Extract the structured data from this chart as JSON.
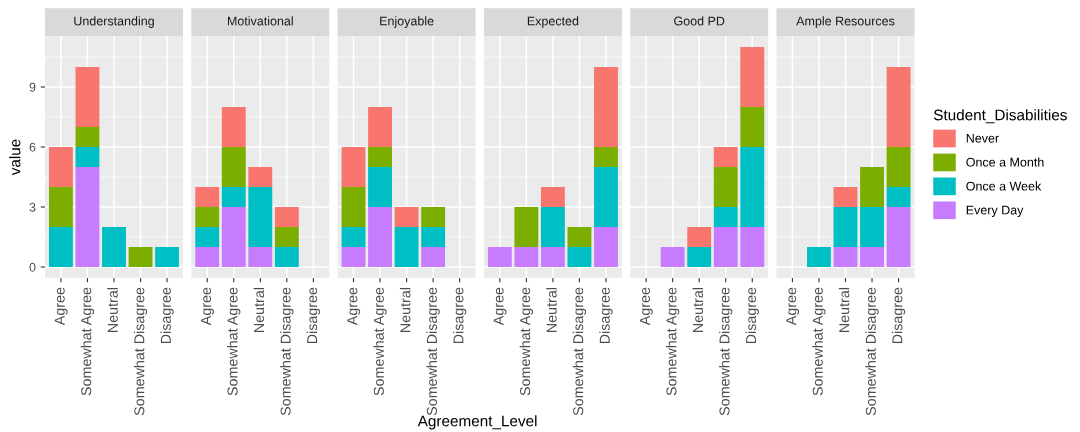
{
  "chart_data": [
    {
      "type": "bar",
      "stacked": true,
      "title": "Understanding",
      "ylabel": "value",
      "categories": [
        "Agree",
        "Somewhat Agree",
        "Neutral",
        "Somewhat Disagree",
        "Disagree"
      ],
      "ylim": [
        -0.55,
        11.55
      ],
      "yticks": [
        0,
        3,
        6,
        9
      ],
      "grid": true,
      "legend": "right",
      "legend_title": "Student_Disabilities",
      "series": [
        {
          "name": "Every Day",
          "color": "#c77cff",
          "values": [
            0,
            5,
            0,
            0,
            0
          ]
        },
        {
          "name": "Once a Week",
          "color": "#00bfc4",
          "values": [
            2,
            1,
            2,
            0,
            1
          ]
        },
        {
          "name": "Once a Month",
          "color": "#7cae00",
          "values": [
            2,
            1,
            0,
            1,
            0
          ]
        },
        {
          "name": "Never",
          "color": "#f8766d",
          "values": [
            2,
            3,
            0,
            0,
            0
          ]
        }
      ]
    },
    {
      "type": "bar",
      "stacked": true,
      "title": "Motivational",
      "categories": [
        "Agree",
        "Somewhat Agree",
        "Neutral",
        "Somewhat Disagree",
        "Disagree"
      ],
      "ylim": [
        -0.55,
        11.55
      ],
      "yticks": [
        0,
        3,
        6,
        9
      ],
      "grid": true,
      "tick_labels": "x",
      "series": [
        {
          "color": "#c77cff",
          "values": [
            1,
            3,
            1,
            0,
            0
          ]
        },
        {
          "color": "#00bfc4",
          "values": [
            1,
            1,
            3,
            1,
            0
          ]
        },
        {
          "color": "#7cae00",
          "values": [
            1,
            2,
            0,
            1,
            0
          ]
        },
        {
          "color": "#f8766d",
          "values": [
            1,
            2,
            1,
            1,
            0
          ]
        }
      ]
    },
    {
      "type": "bar",
      "stacked": true,
      "title": "Enjoyable",
      "xlabel": "Agreement_Level",
      "categories": [
        "Agree",
        "Somewhat Agree",
        "Neutral",
        "Somewhat Disagree",
        "Disagree"
      ],
      "ylim": [
        -0.55,
        11.55
      ],
      "yticks": [
        0,
        3,
        6,
        9
      ],
      "grid": true,
      "tick_labels": "x",
      "series": [
        {
          "color": "#c77cff",
          "values": [
            1,
            3,
            0,
            1,
            0
          ]
        },
        {
          "color": "#00bfc4",
          "values": [
            1,
            2,
            2,
            1,
            0
          ]
        },
        {
          "color": "#7cae00",
          "values": [
            2,
            1,
            0,
            1,
            0
          ]
        },
        {
          "color": "#f8766d",
          "values": [
            2,
            2,
            1,
            0,
            0
          ]
        }
      ]
    },
    {
      "type": "bar",
      "stacked": true,
      "title": "Expected",
      "categories": [
        "Agree",
        "Somewhat Agree",
        "Neutral",
        "Somewhat Disagree",
        "Disagree"
      ],
      "ylim": [
        -0.55,
        11.55
      ],
      "yticks": [
        0,
        3,
        6,
        9
      ],
      "grid": true,
      "tick_labels": "x",
      "series": [
        {
          "color": "#c77cff",
          "values": [
            1,
            1,
            1,
            0,
            2
          ]
        },
        {
          "color": "#00bfc4",
          "values": [
            0,
            0,
            2,
            1,
            3
          ]
        },
        {
          "color": "#7cae00",
          "values": [
            0,
            2,
            0,
            1,
            1
          ]
        },
        {
          "color": "#f8766d",
          "values": [
            0,
            0,
            1,
            0,
            4
          ]
        }
      ]
    },
    {
      "type": "bar",
      "stacked": true,
      "title": "Good PD",
      "categories": [
        "Agree",
        "Somewhat Agree",
        "Neutral",
        "Somewhat Disagree",
        "Disagree"
      ],
      "ylim": [
        -0.55,
        11.55
      ],
      "yticks": [
        0,
        3,
        6,
        9
      ],
      "grid": true,
      "tick_labels": "x",
      "series": [
        {
          "color": "#c77cff",
          "values": [
            0,
            1,
            0,
            2,
            2
          ]
        },
        {
          "color": "#00bfc4",
          "values": [
            0,
            0,
            1,
            1,
            4
          ]
        },
        {
          "color": "#7cae00",
          "values": [
            0,
            0,
            0,
            2,
            2
          ]
        },
        {
          "color": "#f8766d",
          "values": [
            0,
            0,
            1,
            1,
            3
          ]
        }
      ]
    },
    {
      "type": "bar",
      "stacked": true,
      "title": "Ample Resources",
      "categories": [
        "Agree",
        "Somewhat Agree",
        "Neutral",
        "Somewhat Disagree",
        "Disagree"
      ],
      "ylim": [
        -0.55,
        11.55
      ],
      "yticks": [
        0,
        3,
        6,
        9
      ],
      "grid": true,
      "tick_labels": "x",
      "series": [
        {
          "color": "#c77cff",
          "values": [
            0,
            0,
            1,
            1,
            3
          ]
        },
        {
          "color": "#00bfc4",
          "values": [
            0,
            1,
            2,
            2,
            1
          ]
        },
        {
          "color": "#7cae00",
          "values": [
            0,
            0,
            0,
            2,
            2
          ]
        },
        {
          "color": "#f8766d",
          "values": [
            0,
            0,
            1,
            0,
            4
          ]
        }
      ]
    }
  ]
}
